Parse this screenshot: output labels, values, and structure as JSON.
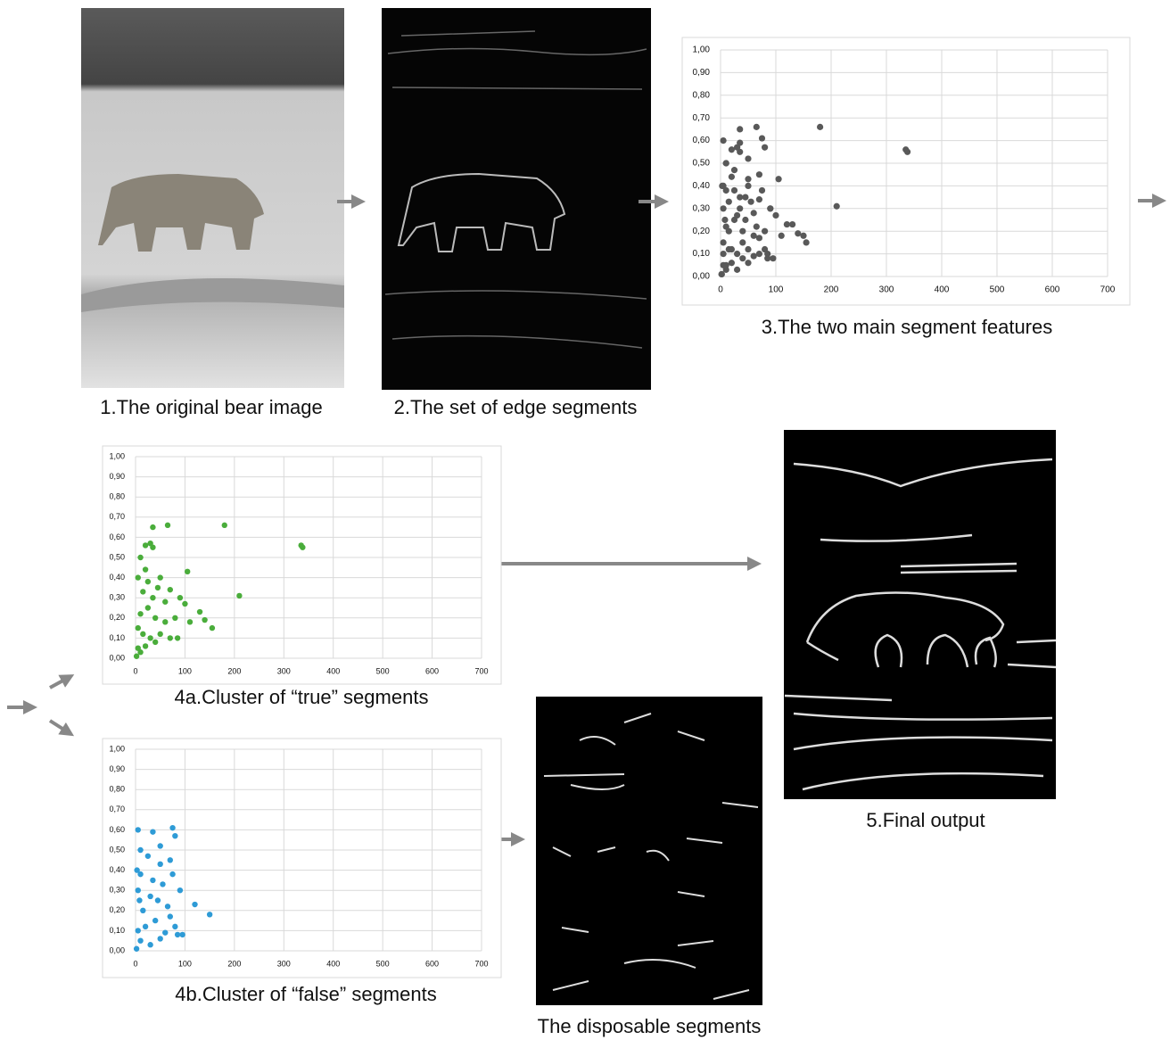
{
  "panels": [
    {
      "caption": "1.The original bear image"
    },
    {
      "caption": "2.The set of edge segments"
    },
    {
      "caption": "5.Final output"
    },
    {
      "caption": "The disposable segments"
    }
  ],
  "chart_data": [
    {
      "type": "scatter",
      "title": "3.The two main segment features",
      "color": "#595959",
      "x": [
        180,
        335,
        338,
        65,
        35,
        20,
        30,
        35,
        10,
        5,
        20,
        50,
        105,
        25,
        45,
        70,
        90,
        210,
        15,
        35,
        60,
        100,
        130,
        140,
        155,
        80,
        60,
        110,
        40,
        25,
        10,
        5,
        15,
        30,
        50,
        70,
        85,
        5,
        10,
        2,
        20,
        40,
        75,
        5,
        35,
        80,
        10,
        50,
        70,
        25,
        50,
        75,
        10,
        35,
        55,
        90,
        5,
        30,
        45,
        65,
        120,
        150,
        15,
        40,
        80,
        95,
        85,
        60,
        20,
        5,
        10,
        30,
        2,
        50,
        3,
        8,
        70
      ],
      "values": [
        0.66,
        0.56,
        0.55,
        0.66,
        0.65,
        0.56,
        0.57,
        0.55,
        0.5,
        0.4,
        0.44,
        0.4,
        0.43,
        0.38,
        0.35,
        0.34,
        0.3,
        0.31,
        0.33,
        0.3,
        0.28,
        0.27,
        0.23,
        0.19,
        0.15,
        0.2,
        0.18,
        0.18,
        0.2,
        0.25,
        0.22,
        0.15,
        0.12,
        0.1,
        0.12,
        0.1,
        0.1,
        0.05,
        0.03,
        0.01,
        0.06,
        0.08,
        0.61,
        0.6,
        0.59,
        0.57,
        0.5,
        0.52,
        0.45,
        0.47,
        0.43,
        0.38,
        0.38,
        0.35,
        0.33,
        0.3,
        0.3,
        0.27,
        0.25,
        0.22,
        0.23,
        0.18,
        0.2,
        0.15,
        0.12,
        0.08,
        0.08,
        0.09,
        0.12,
        0.1,
        0.05,
        0.03,
        0.01,
        0.06,
        0.4,
        0.25,
        0.17
      ],
      "xlim": [
        0,
        700
      ],
      "ylim": [
        0,
        1
      ],
      "xticks": [
        0,
        100,
        200,
        300,
        400,
        500,
        600,
        700
      ],
      "yticks": [
        {
          "value": 0,
          "label": "0,00"
        },
        {
          "value": 0.1,
          "label": "0,10"
        },
        {
          "value": 0.2,
          "label": "0,20"
        },
        {
          "value": 0.3,
          "label": "0,30"
        },
        {
          "value": 0.4,
          "label": "0,40"
        },
        {
          "value": 0.5,
          "label": "0,50"
        },
        {
          "value": 0.6,
          "label": "0,60"
        },
        {
          "value": 0.7,
          "label": "0,70"
        },
        {
          "value": 0.8,
          "label": "0,80"
        },
        {
          "value": 0.9,
          "label": "0,90"
        },
        {
          "value": 1,
          "label": "1,00"
        }
      ],
      "grid": true
    },
    {
      "type": "scatter",
      "title": "4a.Cluster of “true” segments",
      "color": "#4aad3b",
      "x": [
        180,
        335,
        338,
        65,
        35,
        20,
        30,
        35,
        10,
        5,
        20,
        50,
        105,
        25,
        45,
        70,
        90,
        210,
        15,
        35,
        60,
        100,
        130,
        140,
        155,
        80,
        60,
        110,
        40,
        25,
        10,
        5,
        15,
        30,
        50,
        70,
        85,
        5,
        10,
        2,
        20,
        40
      ],
      "values": [
        0.66,
        0.56,
        0.55,
        0.66,
        0.65,
        0.56,
        0.57,
        0.55,
        0.5,
        0.4,
        0.44,
        0.4,
        0.43,
        0.38,
        0.35,
        0.34,
        0.3,
        0.31,
        0.33,
        0.3,
        0.28,
        0.27,
        0.23,
        0.19,
        0.15,
        0.2,
        0.18,
        0.18,
        0.2,
        0.25,
        0.22,
        0.15,
        0.12,
        0.1,
        0.12,
        0.1,
        0.1,
        0.05,
        0.03,
        0.01,
        0.06,
        0.08
      ],
      "xlim": [
        0,
        700
      ],
      "ylim": [
        0,
        1
      ],
      "xticks": [
        0,
        100,
        200,
        300,
        400,
        500,
        600,
        700
      ],
      "yticks": [
        {
          "value": 0,
          "label": "0,00"
        },
        {
          "value": 0.1,
          "label": "0,10"
        },
        {
          "value": 0.2,
          "label": "0,20"
        },
        {
          "value": 0.3,
          "label": "0,30"
        },
        {
          "value": 0.4,
          "label": "0,40"
        },
        {
          "value": 0.5,
          "label": "0,50"
        },
        {
          "value": 0.6,
          "label": "0,60"
        },
        {
          "value": 0.7,
          "label": "0,70"
        },
        {
          "value": 0.8,
          "label": "0,80"
        },
        {
          "value": 0.9,
          "label": "0,90"
        },
        {
          "value": 1,
          "label": "1,00"
        }
      ],
      "grid": true
    },
    {
      "type": "scatter",
      "title": "4b.Cluster of “false” segments",
      "color": "#2e9bd6",
      "x": [
        75,
        5,
        35,
        80,
        10,
        50,
        70,
        25,
        50,
        75,
        10,
        35,
        55,
        90,
        5,
        30,
        45,
        65,
        120,
        150,
        15,
        40,
        80,
        95,
        85,
        60,
        20,
        5,
        10,
        30,
        2,
        50,
        3,
        8,
        70
      ],
      "values": [
        0.61,
        0.6,
        0.59,
        0.57,
        0.5,
        0.52,
        0.45,
        0.47,
        0.43,
        0.38,
        0.38,
        0.35,
        0.33,
        0.3,
        0.3,
        0.27,
        0.25,
        0.22,
        0.23,
        0.18,
        0.2,
        0.15,
        0.12,
        0.08,
        0.08,
        0.09,
        0.12,
        0.1,
        0.05,
        0.03,
        0.01,
        0.06,
        0.4,
        0.25,
        0.17
      ],
      "xlim": [
        0,
        700
      ],
      "ylim": [
        0,
        1
      ],
      "xticks": [
        0,
        100,
        200,
        300,
        400,
        500,
        600,
        700
      ],
      "yticks": [
        {
          "value": 0,
          "label": "0,00"
        },
        {
          "value": 0.1,
          "label": "0,10"
        },
        {
          "value": 0.2,
          "label": "0,20"
        },
        {
          "value": 0.3,
          "label": "0,30"
        },
        {
          "value": 0.4,
          "label": "0,40"
        },
        {
          "value": 0.5,
          "label": "0,50"
        },
        {
          "value": 0.6,
          "label": "0,60"
        },
        {
          "value": 0.7,
          "label": "0,70"
        },
        {
          "value": 0.8,
          "label": "0,80"
        },
        {
          "value": 0.9,
          "label": "0,90"
        },
        {
          "value": 1,
          "label": "1,00"
        }
      ],
      "grid": true
    }
  ]
}
